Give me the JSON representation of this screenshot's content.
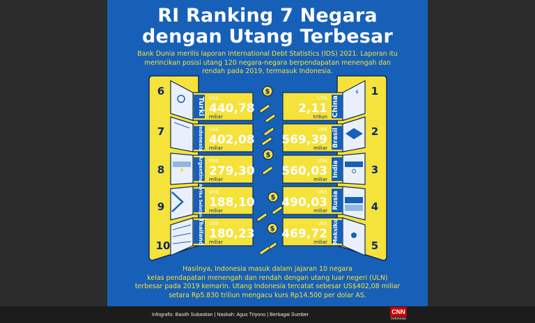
{
  "title": {
    "line1": "RI Ranking 7 Negara",
    "line2": "dengan Utang Terbesar"
  },
  "intro": {
    "line1": "Bank Dunia merilis laporan International Debt Statistics (IDS) 2021. Laporan itu",
    "line2": "merincikan posisi utang 120 negara-negara berpendapatan menengah dan",
    "line3": "rendah pada 2019, termasuk Indonesia."
  },
  "left_rows": [
    {
      "rank": "6",
      "country": "Turki",
      "currency": "US$",
      "value": "440,78",
      "unit": "miliar"
    },
    {
      "rank": "7",
      "country": "Indonesia",
      "currency": "US$",
      "value": "402,08",
      "unit": "miliar"
    },
    {
      "rank": "8",
      "country": "Argentina",
      "currency": "US$",
      "value": "279,30",
      "unit": "miliar"
    },
    {
      "rank": "9",
      "country": "Afrika Selatan",
      "currency": "US$",
      "value": "188,10",
      "unit": "miliar"
    },
    {
      "rank": "10",
      "country": "Thailand",
      "currency": "US$",
      "value": "180,23",
      "unit": "miliar"
    }
  ],
  "right_rows": [
    {
      "rank": "1",
      "country": "China",
      "currency": "US$",
      "value": "2,11",
      "unit": "triliun"
    },
    {
      "rank": "2",
      "country": "Brasil",
      "currency": "US$",
      "value": "569,39",
      "unit": "miliar"
    },
    {
      "rank": "3",
      "country": "India",
      "currency": "US$",
      "value": "560,03",
      "unit": "miliar"
    },
    {
      "rank": "4",
      "country": "Rusia",
      "currency": "US$",
      "value": "490,03",
      "unit": "miliar"
    },
    {
      "rank": "5",
      "country": "Meksiko",
      "currency": "US$",
      "value": "469,72",
      "unit": "miliar"
    }
  ],
  "outro": {
    "line1": "Hasilnya, Indonesia masuk dalam jajaran 10 negara",
    "line2": "kelas pendapatan menengah dan rendah dengan utang luar negeri (ULN)",
    "line3": "terbesar pada 2019 kemarin. Utang Indonesia tercatat sebesar US$402,08 miliar",
    "line4": "setara Rp5.830 triliun mengacu kurs Rp14.500 per dolar AS."
  },
  "footer": {
    "credit": "Infografis: Basith Subastian | Naskah: Agus Triyono | Berbagai Sumber",
    "logo": "CNN",
    "logo_sub": "Indonesia"
  },
  "colors": {
    "background": "#1760b8",
    "yellow": "#f5e23a",
    "flag_panel": "#eaf0fb",
    "outline": "#0a2a5e"
  },
  "icons": [
    "coin-icon",
    "pencil-icon"
  ]
}
